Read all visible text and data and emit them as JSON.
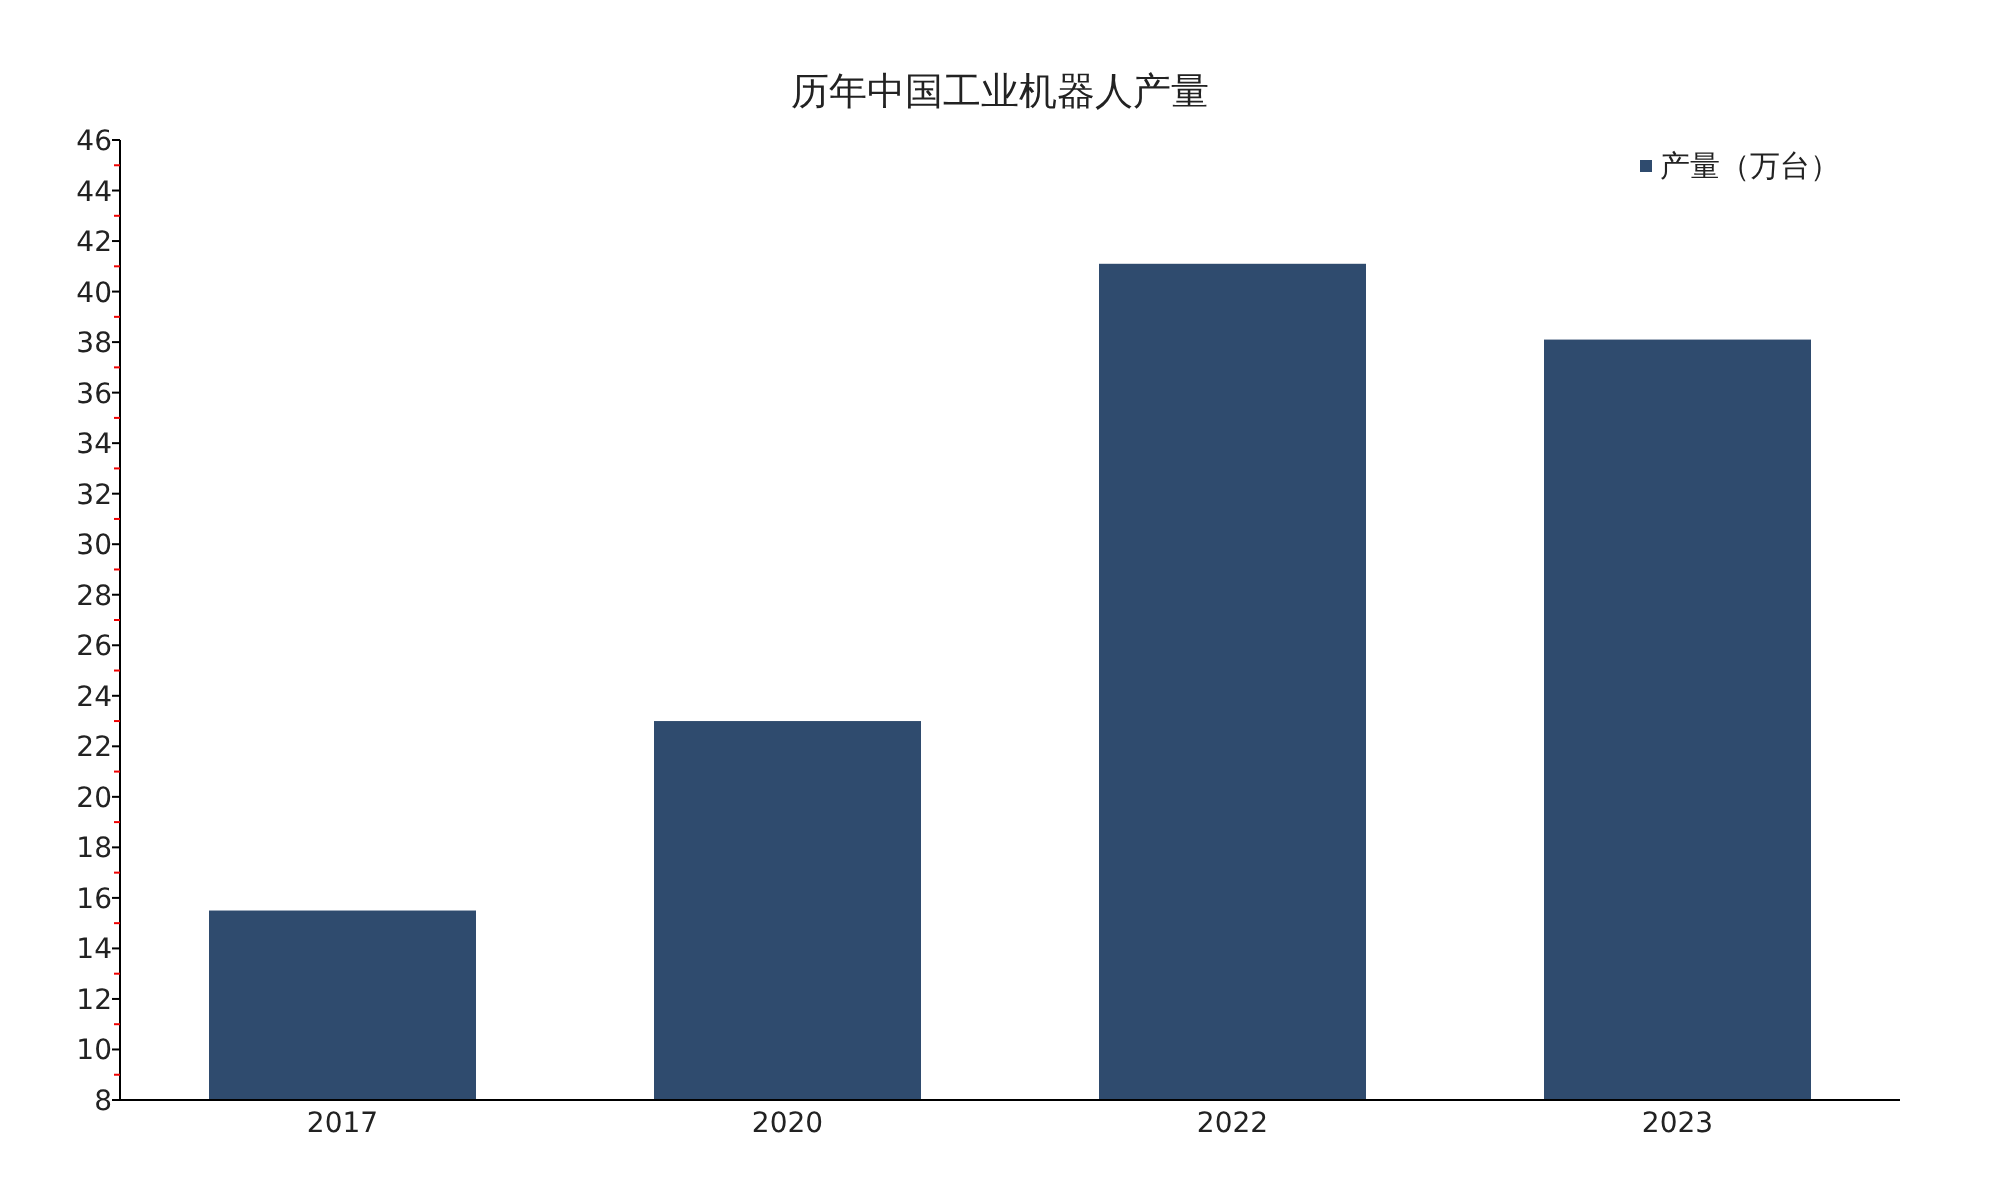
{
  "chart_data": {
    "type": "bar",
    "title": "历年中国工业机器人产量",
    "categories": [
      "2017",
      "2020",
      "2022",
      "2023"
    ],
    "series": [
      {
        "name": "产量（万台）",
        "color": "#2f4b6e",
        "values": [
          15.5,
          23.0,
          41.1,
          38.1
        ]
      }
    ],
    "ylim": [
      8,
      46
    ],
    "yticks": [
      8,
      10,
      12,
      14,
      16,
      18,
      20,
      22,
      24,
      26,
      28,
      30,
      32,
      34,
      36,
      38,
      40,
      42,
      44,
      46
    ],
    "grid": false,
    "legend": "top right"
  }
}
